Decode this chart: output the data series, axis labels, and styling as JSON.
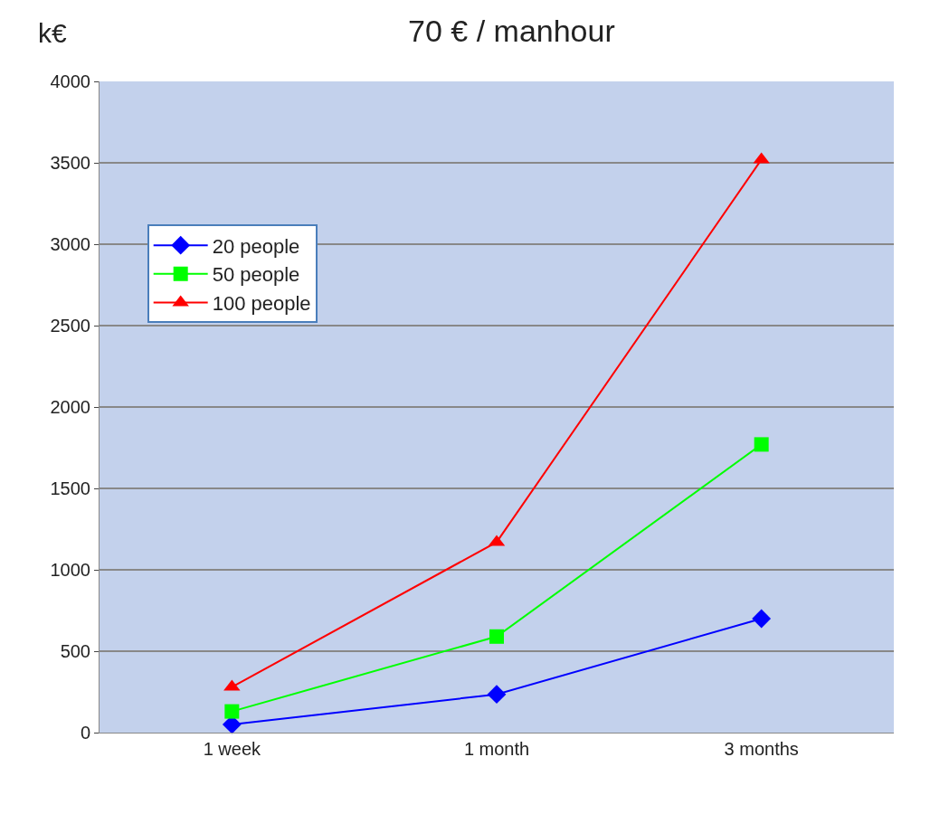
{
  "chart_data": {
    "type": "line",
    "title": "70 € / manhour",
    "ylabel": "k€",
    "categories": [
      "1 week",
      "1 month",
      "3 months"
    ],
    "series": [
      {
        "name": "20 people",
        "color": "#0000ff",
        "marker": "diamond",
        "values": [
          50,
          235,
          700
        ]
      },
      {
        "name": "50 people",
        "color": "#00ff00",
        "marker": "square",
        "values": [
          130,
          590,
          1770
        ]
      },
      {
        "name": "100 people",
        "color": "#ff0000",
        "marker": "triangle",
        "values": [
          280,
          1170,
          3520
        ]
      }
    ],
    "ylim": [
      0,
      4000
    ],
    "yticks": [
      0,
      500,
      1000,
      1500,
      2000,
      2500,
      3000,
      3500,
      4000
    ],
    "grid": "y",
    "legend": "top left",
    "line_style": "solid"
  }
}
